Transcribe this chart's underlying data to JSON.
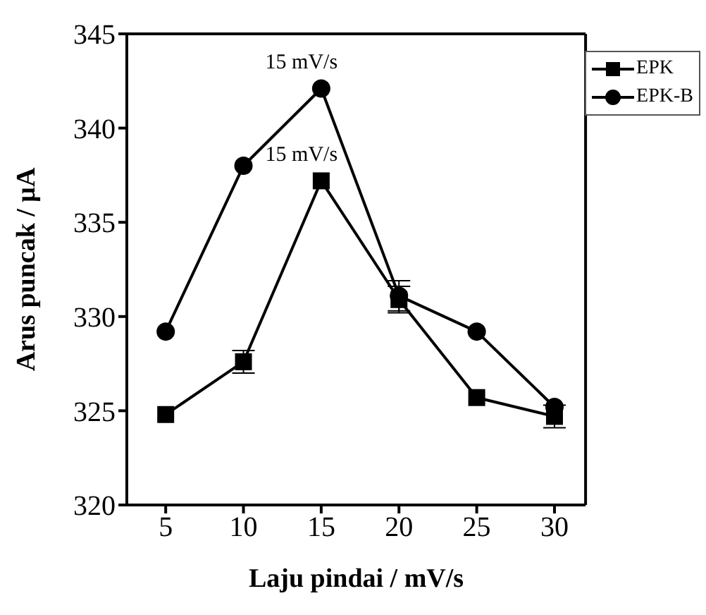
{
  "chart_data": {
    "type": "line",
    "xlabel": "Laju pindai / mV/s",
    "ylabel": "Arus puncak / μA",
    "x": [
      5,
      10,
      15,
      20,
      25,
      30
    ],
    "series": [
      {
        "name": "EPK",
        "color": "#000000",
        "marker": "square",
        "values": [
          324.8,
          327.6,
          337.2,
          330.9,
          325.7,
          324.7
        ],
        "errors": [
          null,
          0.6,
          null,
          0.7,
          null,
          0.6
        ]
      },
      {
        "name": "EPK-B",
        "color": "#000000",
        "marker": "circle",
        "values": [
          329.2,
          338.0,
          342.1,
          331.1,
          329.2,
          325.2
        ],
        "errors": [
          null,
          null,
          null,
          0.8,
          null,
          null
        ]
      }
    ],
    "annotations": [
      {
        "text": "15 mV/s",
        "x": 15,
        "y": 342.1
      },
      {
        "text": "15 mV/s",
        "x": 15,
        "y": 337.2
      }
    ],
    "xlim": [
      2.5,
      32
    ],
    "xticks": [
      5,
      10,
      15,
      20,
      25,
      30
    ],
    "ylim": [
      320,
      345
    ],
    "yticks": [
      320,
      325,
      330,
      335,
      340,
      345
    ],
    "grid": false,
    "legend": "top right",
    "line_style": "solid"
  }
}
